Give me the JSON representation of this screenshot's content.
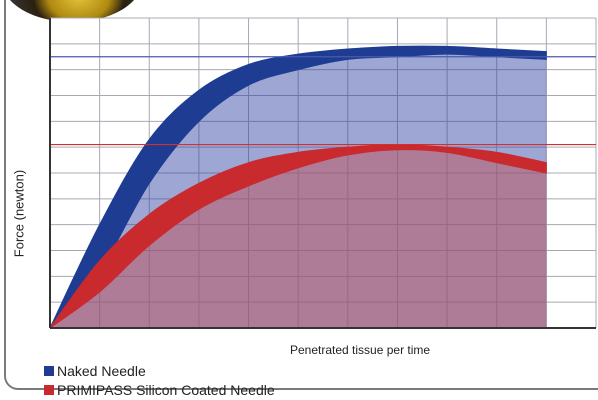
{
  "chart_data": {
    "type": "area",
    "title": "",
    "xlabel": "Penetrated tissue per time",
    "ylabel": "Force (newton)",
    "x": [
      0,
      1,
      2,
      3,
      4,
      5,
      6,
      7,
      8,
      9,
      10
    ],
    "xlim": [
      0,
      11
    ],
    "ylim": [
      0,
      12
    ],
    "grid": true,
    "legend_position": "bottom-left",
    "series": [
      {
        "name": "Naked Needle",
        "color": "#1e3c92",
        "band_upper": [
          0,
          4.0,
          7.3,
          9.2,
          10.2,
          10.6,
          10.8,
          10.9,
          10.9,
          10.8,
          10.7
        ],
        "band_lower": [
          0,
          2.2,
          5.6,
          8.0,
          9.4,
          10.0,
          10.4,
          10.5,
          10.6,
          10.5,
          10.4
        ]
      },
      {
        "name": "PRIMIPASS Silicon Coated Needle",
        "color": "#c82a2e",
        "band_upper": [
          0,
          2.6,
          4.4,
          5.6,
          6.4,
          6.8,
          7.0,
          7.1,
          7.0,
          6.8,
          6.4
        ],
        "band_lower": [
          0,
          1.4,
          3.2,
          4.6,
          5.5,
          6.2,
          6.7,
          6.9,
          6.8,
          6.4,
          6.0
        ]
      }
    ],
    "reference_lines": [
      {
        "y": 10.5,
        "color": "#4a5ab0"
      },
      {
        "y": 7.1,
        "color": "#d03030"
      }
    ]
  }
}
